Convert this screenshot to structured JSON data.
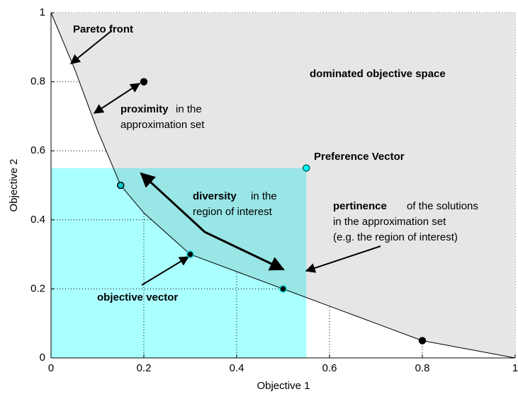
{
  "chart_data": {
    "type": "pareto",
    "xlabel": "Objective 1",
    "ylabel": "Objective 2",
    "xlim": [
      0,
      1
    ],
    "ylim": [
      0,
      1
    ],
    "xticks": [
      0,
      0.2,
      0.4,
      0.6,
      0.8,
      1
    ],
    "yticks": [
      0,
      0.2,
      0.4,
      0.6,
      0.8,
      1
    ],
    "grid": true,
    "dominated_color": "#e6e6e6",
    "region_of_interest": {
      "x": [
        0,
        0.55
      ],
      "y": [
        0,
        0.55
      ],
      "color": "#aaffff"
    },
    "front": {
      "x": [
        0,
        0.05,
        0.1,
        0.15,
        0.2,
        0.3,
        0.4,
        0.5,
        0.6,
        0.7,
        0.8,
        0.9,
        1
      ],
      "y": [
        1,
        0.84,
        0.66,
        0.5,
        0.42,
        0.3,
        0.25,
        0.2,
        0.15,
        0.1,
        0.05,
        0.025,
        0
      ]
    },
    "points": {
      "x": [
        0.2,
        0.15,
        0.3,
        0.5,
        0.8,
        0.55
      ],
      "y": [
        0.8,
        0.5,
        0.3,
        0.2,
        0.05,
        0.55
      ],
      "colors": [
        "#000000",
        "#00cccc",
        "#000000",
        "#000000",
        "#000000",
        "#00ffff"
      ],
      "edge_colors": [
        "#000000",
        "#000000",
        "#00cccc",
        "#00cccc",
        "#000000",
        "#006666"
      ]
    },
    "annotations": [
      {
        "bold": "Pareto front"
      },
      {
        "bold": "dominated objective space"
      },
      {
        "bold": "proximity",
        "text": [
          "in the",
          "approximation set"
        ]
      },
      {
        "bold": "Preference Vector"
      },
      {
        "bold": "diversity",
        "text": [
          "in the",
          "region of interest"
        ]
      },
      {
        "bold": "pertinence",
        "text": [
          "of the solutions",
          "in the approximation set",
          "(e.g. the region of interest)"
        ]
      },
      {
        "bold": "objective vector"
      }
    ]
  }
}
